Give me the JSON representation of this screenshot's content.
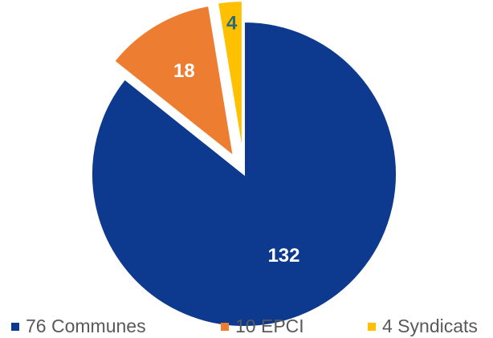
{
  "chart_data": {
    "type": "pie",
    "slices": [
      {
        "label": "76 Communes",
        "value": 132,
        "data_label": "132",
        "color": "#0d3a8e",
        "label_color": "#ffffff",
        "exploded": false
      },
      {
        "label": "10 EPCI",
        "value": 18,
        "data_label": "18",
        "color": "#ed7d31",
        "label_color": "#ffffff",
        "exploded": true
      },
      {
        "label": "4 Syndicats",
        "value": 4,
        "data_label": "4",
        "color": "#ffc000",
        "label_color": "#2e6b74",
        "exploded": true
      }
    ],
    "start_angle_deg": 0,
    "direction": "clockwise",
    "legend_position": "bottom",
    "title": ""
  }
}
